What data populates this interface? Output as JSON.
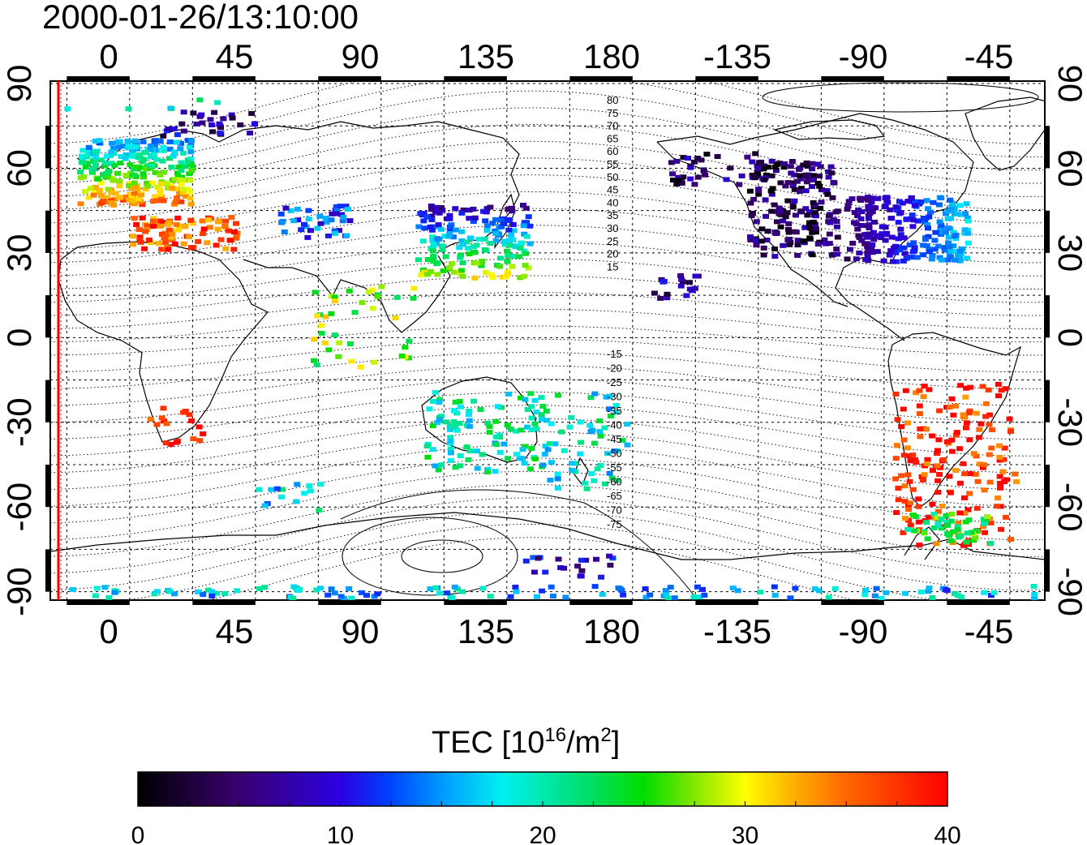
{
  "timestamp": "2000-01-26/13:10:00",
  "map": {
    "lon_ticks": [
      0,
      45,
      90,
      135,
      180,
      -135,
      -90,
      -45
    ],
    "lat_ticks": [
      90,
      60,
      30,
      0,
      -30,
      -60,
      -90
    ],
    "contour_labels_north": [
      "80",
      "75",
      "70",
      "65",
      "60",
      "55",
      "50",
      "45",
      "40",
      "35",
      "30",
      "25",
      "20",
      "15"
    ],
    "contour_labels_south": [
      "-15",
      "-20",
      "-25",
      "-30",
      "-35",
      "-40",
      "-45",
      "-50",
      "-55",
      "-60",
      "-65",
      "-70",
      "-75"
    ],
    "terminator_color": "#ff0000"
  },
  "colorbar": {
    "title_main": "TEC  [10",
    "title_sup1": "16",
    "title_mid": "/m",
    "title_sup2": "2",
    "title_end": "]",
    "min": 0,
    "max": 40,
    "tick_labels": [
      "0",
      "10",
      "20",
      "30",
      "40"
    ]
  }
}
